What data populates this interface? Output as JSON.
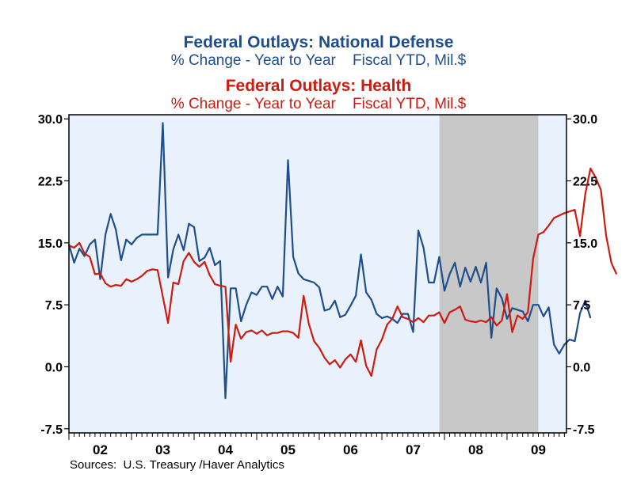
{
  "chart_data": {
    "type": "line",
    "titles": [
      {
        "title": "Federal Outlays: National Defense",
        "subtitle": "% Change - Year to Year    Fiscal YTD, Mil.$",
        "color": "#1f4e8c"
      },
      {
        "title": "Federal Outlays: Health",
        "subtitle": "% Change - Year to Year    Fiscal YTD, Mil.$",
        "color": "#cc1b10"
      }
    ],
    "y_ticks": [
      "30.0",
      "22.5",
      "15.0",
      "7.5",
      "0.0",
      "-7.5"
    ],
    "y_tick_values": [
      30,
      22.5,
      15,
      7.5,
      0,
      -7.5
    ],
    "ylim": [
      -8.0,
      30.5
    ],
    "x_tick_labels": [
      "02",
      "03",
      "04",
      "05",
      "06",
      "07",
      "08",
      "09"
    ],
    "x_start_year": 2002,
    "x_end": 2009.95,
    "recession_shading": {
      "start": 2007.92,
      "end": 2009.5
    },
    "grid": false,
    "source": "Sources:  U.S. Treasury /Haver Analytics",
    "colors": {
      "plot_bg": "#e9f2fc",
      "recession": "#c8c8c8",
      "defense": "#1f4e8c",
      "health": "#cc1b10"
    },
    "series": [
      {
        "key": "defense",
        "start_year": 2002,
        "step_months": 1,
        "values": [
          14.8,
          12.6,
          14.3,
          13.4,
          14.8,
          15.4,
          10.6,
          16.0,
          18.5,
          16.6,
          12.9,
          15.4,
          14.8,
          15.6,
          16.0,
          16.0,
          16.0,
          16.0,
          29.5,
          10.8,
          14.2,
          16.0,
          14.1,
          17.3,
          16.9,
          12.8,
          13.2,
          14.4,
          12.3,
          12.8,
          -3.8,
          9.5,
          9.5,
          5.5,
          7.5,
          9.0,
          8.7,
          9.7,
          9.7,
          8.2,
          9.7,
          8.5,
          25.0,
          13.3,
          11.3,
          10.6,
          10.4,
          10.2,
          9.6,
          6.8,
          7.0,
          8.0,
          6.0,
          6.3,
          7.4,
          8.6,
          13.6,
          9.0,
          8.1,
          6.4,
          5.9,
          6.1,
          5.8,
          5.3,
          6.4,
          6.4,
          4.2,
          16.5,
          14.4,
          10.2,
          10.2,
          13.3,
          9.2,
          11.2,
          12.6,
          9.7,
          12.0,
          10.3,
          12.1,
          10.2,
          12.6,
          3.5,
          9.5,
          8.3,
          5.8,
          7.1,
          6.9,
          6.7,
          5.5,
          7.5,
          7.5,
          6.1,
          7.2,
          2.7,
          1.6,
          2.7,
          3.3,
          3.1,
          6.5,
          8.0,
          5.9
        ]
      },
      {
        "key": "health",
        "start_year": 2002,
        "step_months": 1,
        "values": [
          14.7,
          14.4,
          15.0,
          13.7,
          13.3,
          11.2,
          11.3,
          10.1,
          9.7,
          9.9,
          9.8,
          10.6,
          10.3,
          10.6,
          11.0,
          11.6,
          11.8,
          11.7,
          8.5,
          5.3,
          10.2,
          10.0,
          12.8,
          13.8,
          12.7,
          12.1,
          12.7,
          11.1,
          10.0,
          9.8,
          9.7,
          0.6,
          5.1,
          3.4,
          4.2,
          4.4,
          4.0,
          4.4,
          3.8,
          4.1,
          4.1,
          4.3,
          4.3,
          4.1,
          3.5,
          8.6,
          5.2,
          3.1,
          2.3,
          1.1,
          0.3,
          0.8,
          -0.1,
          0.9,
          1.5,
          0.6,
          3.2,
          0.1,
          -1.1,
          2.1,
          3.3,
          5.1,
          5.8,
          7.3,
          6.0,
          5.8,
          5.4,
          5.9,
          5.4,
          6.2,
          6.2,
          6.6,
          5.3,
          6.6,
          6.9,
          7.3,
          5.7,
          5.5,
          5.4,
          5.6,
          5.4,
          6.0,
          5.0,
          5.6,
          8.8,
          4.2,
          6.2,
          5.8,
          6.6,
          13.1,
          16.0,
          16.3,
          17.1,
          18.0,
          18.3,
          18.6,
          18.8,
          19.0,
          15.8,
          20.9,
          24.0,
          22.9,
          21.4,
          15.9,
          12.6,
          11.2
        ]
      }
    ]
  }
}
